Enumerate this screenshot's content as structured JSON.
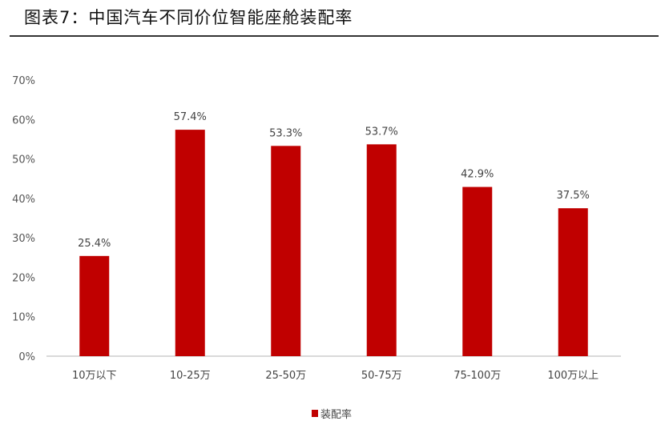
{
  "title": "图表7：中国汽车不同价位智能座舱装配率",
  "chart_data": {
    "type": "bar",
    "title": "",
    "xlabel": "",
    "ylabel": "",
    "categories": [
      "10万以下",
      "10-25万",
      "25-50万",
      "50-75万",
      "75-100万",
      "100万以上"
    ],
    "series": [
      {
        "name": "装配率",
        "values": [
          25.4,
          57.4,
          53.3,
          53.7,
          42.9,
          37.5
        ],
        "color": "#C00000"
      }
    ],
    "data_labels": [
      "25.4%",
      "57.4%",
      "53.3%",
      "53.7%",
      "42.9%",
      "37.5%"
    ],
    "ylim": [
      0,
      70
    ],
    "yticks": [
      "0%",
      "10%",
      "20%",
      "30%",
      "40%",
      "50%",
      "60%",
      "70%"
    ],
    "grid": false,
    "legend_position": "bottom"
  }
}
